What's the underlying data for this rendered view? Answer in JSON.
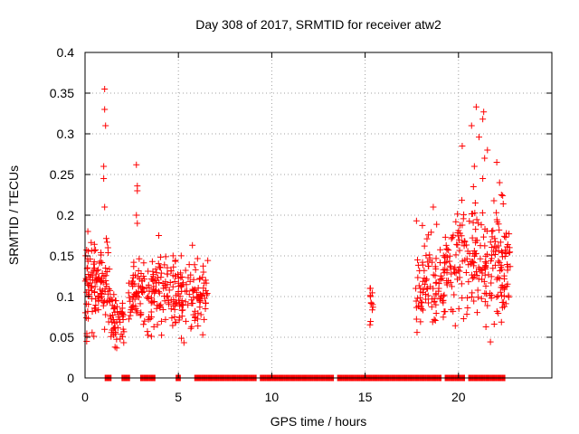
{
  "chart_data": {
    "type": "scatter",
    "title": "Day 308 of 2017, SRMTID for receiver atw2",
    "xlabel": "GPS time / hours",
    "ylabel": "SRMTID / TECUs",
    "xlim": [
      0,
      25
    ],
    "ylim": [
      0,
      0.4
    ],
    "xticks": [
      0,
      5,
      10,
      15,
      20
    ],
    "yticks": [
      0,
      0.05,
      0.1,
      0.15,
      0.2,
      0.25,
      0.3,
      0.35,
      0.4
    ],
    "xtick_labels": [
      "0",
      "5",
      "10",
      "15",
      "20"
    ],
    "ytick_labels": [
      "0",
      "0.05",
      "0.1",
      "0.15",
      "0.2",
      "0.25",
      "0.3",
      "0.35",
      "0.4"
    ],
    "grid": true,
    "marker": "+",
    "series_color": "#ff0000",
    "clusters": [
      {
        "x0": 0.0,
        "x1": 1.35,
        "ymin": 0.03,
        "ymax": 0.19,
        "n": 120,
        "spikes": [
          [
            1.05,
            0.355
          ],
          [
            1.05,
            0.33
          ],
          [
            1.1,
            0.31
          ],
          [
            1.0,
            0.26
          ],
          [
            1.0,
            0.245
          ],
          [
            1.05,
            0.21
          ],
          [
            0.15,
            0.18
          ]
        ]
      },
      {
        "x0": 1.35,
        "x1": 2.1,
        "ymin": 0.02,
        "ymax": 0.12,
        "n": 50,
        "spikes": []
      },
      {
        "x0": 2.3,
        "x1": 3.2,
        "ymin": 0.04,
        "ymax": 0.17,
        "n": 60,
        "spikes": [
          [
            2.75,
            0.262
          ],
          [
            2.8,
            0.236
          ],
          [
            2.8,
            0.23
          ],
          [
            2.75,
            0.2
          ],
          [
            2.8,
            0.19
          ]
        ]
      },
      {
        "x0": 3.3,
        "x1": 5.0,
        "ymin": 0.04,
        "ymax": 0.17,
        "n": 110,
        "spikes": [
          [
            3.95,
            0.175
          ]
        ]
      },
      {
        "x0": 5.0,
        "x1": 6.6,
        "ymin": 0.04,
        "ymax": 0.16,
        "n": 100,
        "spikes": [
          [
            5.75,
            0.163
          ]
        ]
      },
      {
        "x0": 15.25,
        "x1": 15.45,
        "ymin": 0.05,
        "ymax": 0.12,
        "n": 12,
        "spikes": []
      },
      {
        "x0": 17.7,
        "x1": 19.3,
        "ymin": 0.035,
        "ymax": 0.2,
        "n": 100,
        "spikes": [
          [
            17.75,
            0.193
          ],
          [
            18.65,
            0.21
          ]
        ]
      },
      {
        "x0": 19.3,
        "x1": 22.8,
        "ymin": 0.035,
        "ymax": 0.25,
        "n": 230,
        "spikes": [
          [
            20.95,
            0.333
          ],
          [
            21.35,
            0.327
          ],
          [
            21.3,
            0.318
          ],
          [
            20.7,
            0.31
          ],
          [
            21.1,
            0.296
          ],
          [
            20.2,
            0.285
          ],
          [
            21.55,
            0.28
          ],
          [
            21.4,
            0.27
          ],
          [
            20.85,
            0.26
          ],
          [
            22.05,
            0.265
          ],
          [
            21.3,
            0.245
          ],
          [
            22.2,
            0.24
          ],
          [
            20.8,
            0.235
          ],
          [
            22.3,
            0.225
          ],
          [
            20.9,
            0.215
          ]
        ]
      }
    ],
    "zero_ranges": [
      [
        1.1,
        1.4
      ],
      [
        2.0,
        2.4
      ],
      [
        3.0,
        3.8
      ],
      [
        4.9,
        5.1
      ],
      [
        5.9,
        22.5
      ]
    ],
    "zero_gaps": [
      [
        9.2,
        9.4
      ],
      [
        13.3,
        13.5
      ],
      [
        19.1,
        19.3
      ],
      [
        20.3,
        20.5
      ]
    ]
  }
}
